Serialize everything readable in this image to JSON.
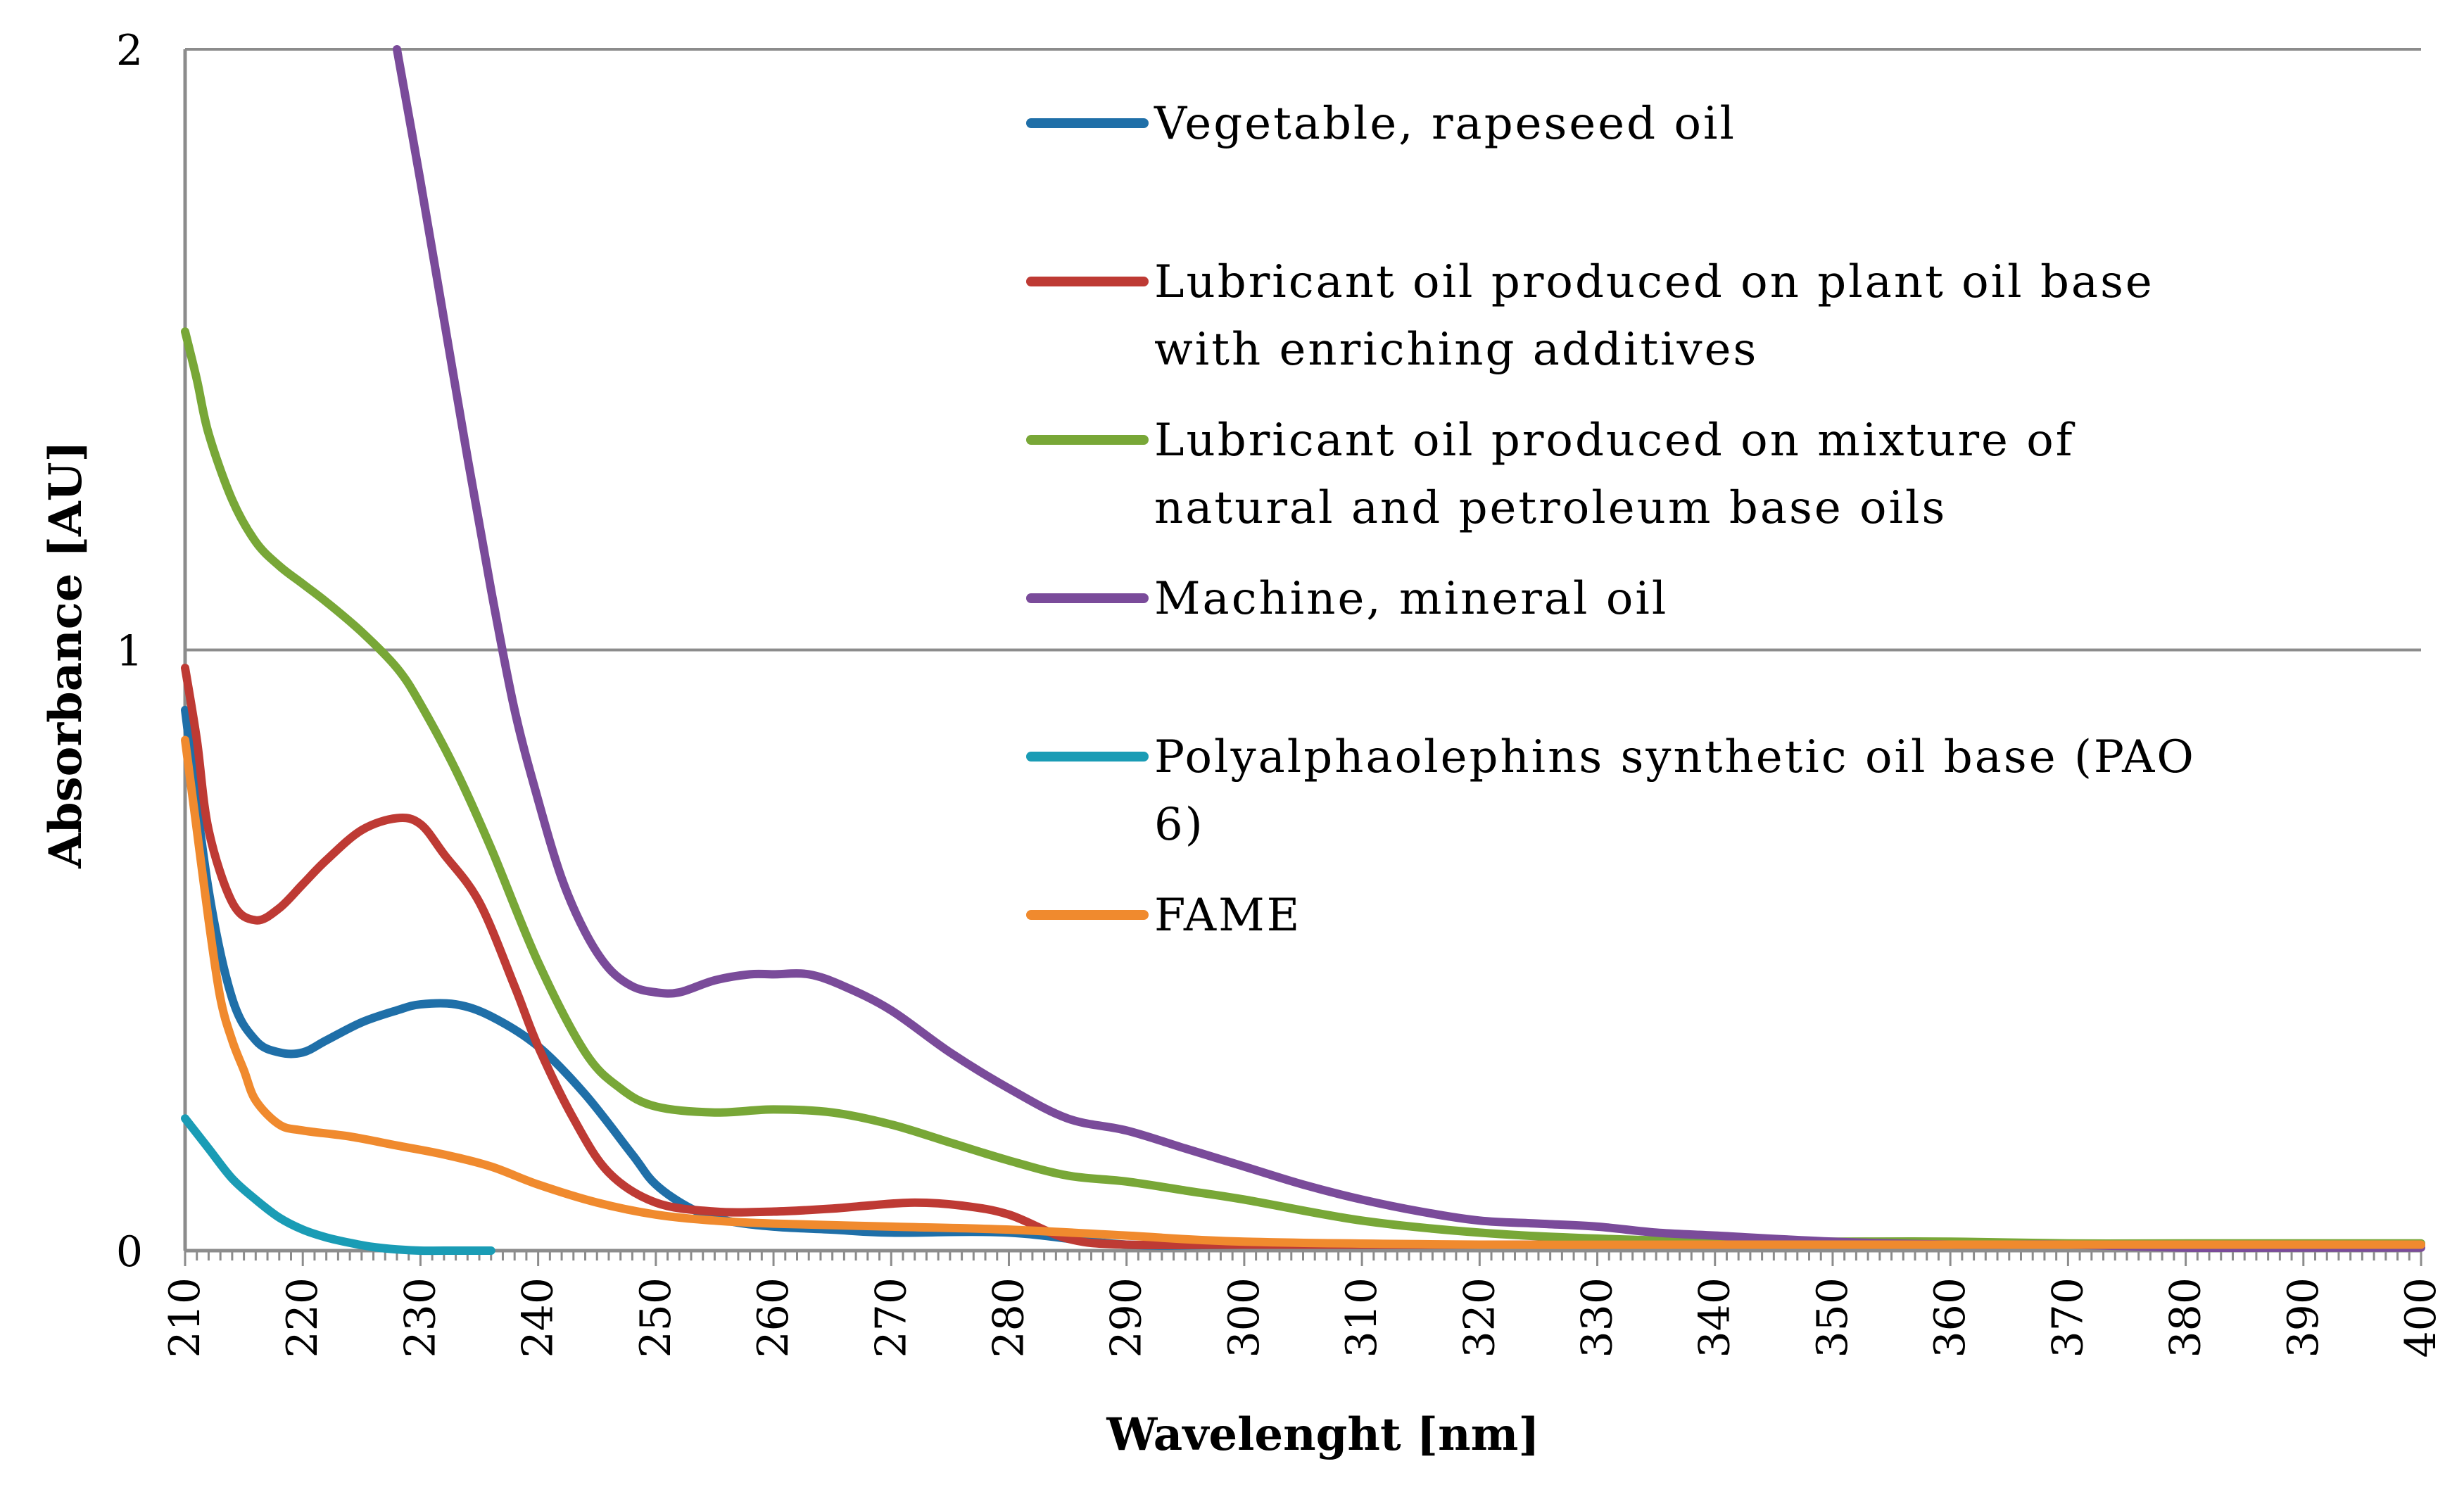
{
  "chart_data": {
    "type": "line",
    "title": "",
    "xlabel": "Wavelenght [nm]",
    "ylabel": "Absorbance [AU]",
    "xlim": [
      210,
      400
    ],
    "ylim": [
      0,
      2
    ],
    "grid": "horizontal",
    "legend_position": "top-right",
    "x_ticks": [
      210,
      220,
      230,
      240,
      250,
      260,
      270,
      280,
      290,
      300,
      310,
      320,
      330,
      340,
      350,
      360,
      370,
      380,
      390,
      400
    ],
    "y_ticks": [
      0,
      1,
      2
    ],
    "series": [
      {
        "name": "Vegetable, rapeseed oil",
        "legend_lines": [
          "Vegetable, rapeseed oil"
        ],
        "color": "#1F6FA8",
        "x": [
          210,
          212,
          214,
          216,
          218,
          220,
          222,
          225,
          228,
          230,
          233,
          236,
          240,
          244,
          248,
          250,
          253,
          256,
          260,
          265,
          270,
          280,
          290,
          300,
          320,
          340,
          360,
          380,
          400
        ],
        "y": [
          0.9,
          0.6,
          0.42,
          0.35,
          0.33,
          0.33,
          0.35,
          0.38,
          0.4,
          0.41,
          0.41,
          0.39,
          0.34,
          0.26,
          0.16,
          0.11,
          0.07,
          0.05,
          0.04,
          0.035,
          0.03,
          0.03,
          0.01,
          0.01,
          0.01,
          0.01,
          0.01,
          0.01,
          0.01
        ]
      },
      {
        "name": "Lubricant oil produced on plant oil base with enriching additives",
        "legend_lines": [
          "Lubricant oil produced on plant oil base",
          "with enriching additives"
        ],
        "color": "#BE3A34",
        "x": [
          210,
          211,
          212,
          214,
          216,
          218,
          220,
          222,
          225,
          228,
          230,
          232,
          235,
          238,
          240,
          243,
          246,
          250,
          255,
          260,
          265,
          268,
          272,
          276,
          280,
          285,
          290,
          300,
          320,
          340,
          360,
          380,
          400
        ],
        "y": [
          0.97,
          0.85,
          0.7,
          0.58,
          0.55,
          0.57,
          0.61,
          0.65,
          0.7,
          0.72,
          0.71,
          0.66,
          0.58,
          0.44,
          0.34,
          0.22,
          0.13,
          0.08,
          0.065,
          0.065,
          0.07,
          0.075,
          0.08,
          0.075,
          0.06,
          0.02,
          0.01,
          0.01,
          0.01,
          0.01,
          0.01,
          0.01,
          0.01
        ]
      },
      {
        "name": "Lubricant oil produced on mixture of natural and petroleum base oils",
        "legend_lines": [
          "Lubricant oil produced on mixture of",
          "natural and petroleum base oils"
        ],
        "color": "#78A737",
        "x": [
          210,
          211,
          212,
          214,
          216,
          218,
          220,
          222,
          225,
          228,
          230,
          233,
          236,
          240,
          244,
          247,
          250,
          255,
          260,
          265,
          270,
          275,
          280,
          285,
          290,
          295,
          300,
          310,
          320,
          330,
          340,
          350,
          360,
          370,
          380,
          390,
          400
        ],
        "y": [
          1.53,
          1.45,
          1.36,
          1.25,
          1.18,
          1.14,
          1.11,
          1.08,
          1.03,
          0.97,
          0.91,
          0.8,
          0.67,
          0.48,
          0.33,
          0.27,
          0.24,
          0.23,
          0.235,
          0.23,
          0.21,
          0.18,
          0.15,
          0.125,
          0.115,
          0.1,
          0.085,
          0.05,
          0.03,
          0.02,
          0.015,
          0.015,
          0.015,
          0.012,
          0.012,
          0.012,
          0.012
        ]
      },
      {
        "name": "Machine, mineral oil",
        "legend_lines": [
          "Machine, mineral oil"
        ],
        "color": "#7A4B9A",
        "x": [
          228,
          230,
          232,
          234,
          236,
          238,
          240,
          242,
          244,
          246,
          248,
          250,
          252,
          255,
          258,
          260,
          263,
          266,
          270,
          275,
          280,
          285,
          290,
          295,
          300,
          305,
          310,
          315,
          320,
          325,
          330,
          335,
          340,
          350,
          360,
          370,
          380,
          390,
          400
        ],
        "y": [
          2.0,
          1.78,
          1.55,
          1.32,
          1.1,
          0.9,
          0.75,
          0.62,
          0.53,
          0.47,
          0.44,
          0.43,
          0.43,
          0.45,
          0.46,
          0.46,
          0.46,
          0.44,
          0.4,
          0.33,
          0.27,
          0.22,
          0.2,
          0.17,
          0.14,
          0.11,
          0.085,
          0.065,
          0.05,
          0.045,
          0.04,
          0.03,
          0.025,
          0.015,
          0.01,
          0.01,
          0.005,
          0.005,
          0.005
        ]
      },
      {
        "name": "Polyalphaolephins synthetic oil base (PAO 6)",
        "legend_lines": [
          "Polyalphaolephins synthetic oil base (PAO",
          "6)"
        ],
        "color": "#1A9CB5",
        "x": [
          210,
          212,
          214,
          216,
          218,
          220,
          222,
          224,
          226,
          228,
          230,
          232,
          236
        ],
        "y": [
          0.22,
          0.17,
          0.12,
          0.085,
          0.055,
          0.035,
          0.022,
          0.013,
          0.006,
          0.002,
          0.0,
          0.0,
          0.0
        ]
      },
      {
        "name": "FAME",
        "legend_lines": [
          "FAME"
        ],
        "color": "#F08A2E",
        "x": [
          210,
          211,
          212,
          213,
          214,
          215,
          216,
          218,
          220,
          224,
          228,
          232,
          236,
          240,
          245,
          250,
          255,
          260,
          270,
          280,
          290,
          300,
          320,
          340,
          360,
          380,
          400
        ],
        "y": [
          0.85,
          0.7,
          0.55,
          0.42,
          0.35,
          0.3,
          0.25,
          0.21,
          0.2,
          0.19,
          0.175,
          0.16,
          0.14,
          0.11,
          0.08,
          0.06,
          0.05,
          0.045,
          0.04,
          0.035,
          0.025,
          0.015,
          0.01,
          0.01,
          0.01,
          0.01,
          0.01
        ]
      }
    ]
  }
}
